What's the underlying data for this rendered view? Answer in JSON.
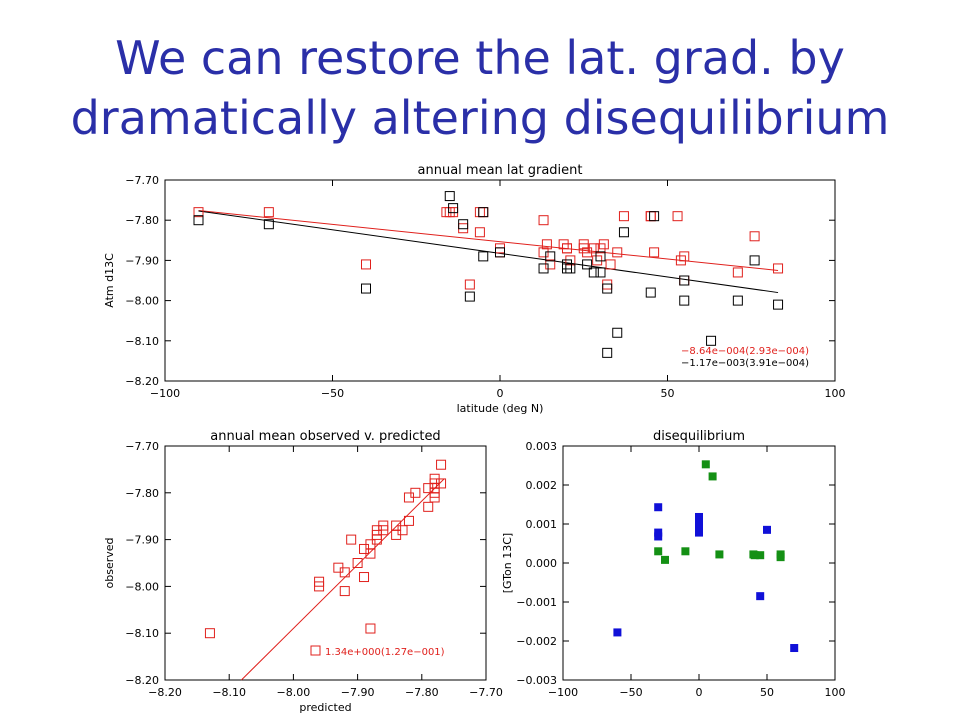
{
  "slide": {
    "title_line1": "We can restore the lat. grad. by",
    "title_line2": "dramatically altering disequilibrium"
  },
  "chart_data": [
    {
      "id": "top",
      "type": "scatter",
      "title": "annual mean lat gradient",
      "xlabel": "latitude (deg N)",
      "ylabel": "Atm d13C",
      "xlim": [
        -100,
        100
      ],
      "ylim": [
        -8.2,
        -7.7
      ],
      "y_inverted": true,
      "xticks": [
        -100,
        -50,
        0,
        50,
        100
      ],
      "yticks": [
        -7.7,
        -7.8,
        -7.9,
        -8.0,
        -8.1,
        -8.2
      ],
      "grid": false,
      "series": [
        {
          "color": "#e0201c",
          "x": [
            -90,
            -69,
            -40,
            -16,
            -15,
            -14,
            -11,
            -9,
            -6,
            -6,
            -5,
            0,
            0,
            13,
            13,
            14,
            15,
            19,
            20,
            20,
            21,
            25,
            25,
            26,
            28,
            29,
            30,
            31,
            32,
            33,
            35,
            37,
            45,
            45,
            46,
            53,
            54,
            55,
            55,
            71,
            76,
            83
          ],
          "y": [
            -7.78,
            -7.78,
            -7.91,
            -7.78,
            -7.78,
            -7.78,
            -7.82,
            -7.96,
            -7.83,
            -7.78,
            -7.78,
            -7.87,
            -7.88,
            -7.8,
            -7.88,
            -7.86,
            -7.91,
            -7.86,
            -7.87,
            -7.87,
            -7.9,
            -7.86,
            -7.87,
            -7.88,
            -7.87,
            -7.9,
            -7.87,
            -7.86,
            -7.96,
            -7.91,
            -7.88,
            -7.79,
            -7.79,
            -7.79,
            -7.88,
            -7.79,
            -7.9,
            -7.95,
            -7.89,
            -7.93,
            -7.84,
            -7.92
          ]
        },
        {
          "color": "#000000",
          "x": [
            -90,
            -69,
            -40,
            -15,
            -14,
            -11,
            -9,
            -5,
            -5,
            0,
            13,
            15,
            20,
            20,
            21,
            26,
            28,
            30,
            30,
            32,
            32,
            35,
            37,
            45,
            46,
            55,
            55,
            63,
            71,
            76,
            83
          ],
          "y": [
            -7.8,
            -7.81,
            -7.97,
            -7.74,
            -7.77,
            -7.81,
            -7.99,
            -7.89,
            -7.78,
            -7.88,
            -7.92,
            -7.89,
            -7.91,
            -7.92,
            -7.92,
            -7.91,
            -7.93,
            -7.93,
            -7.89,
            -8.13,
            -7.97,
            -8.08,
            -7.83,
            -7.98,
            -7.79,
            -7.95,
            -8.0,
            -8.1,
            -8.0,
            -7.9,
            -8.01
          ]
        }
      ],
      "fit_lines": [
        {
          "color": "#e0201c",
          "x": [
            -90,
            83
          ],
          "y": [
            -7.776,
            -7.925
          ]
        },
        {
          "color": "#000000",
          "x": [
            -90,
            83
          ],
          "y": [
            -7.777,
            -7.98
          ]
        }
      ],
      "annotations": [
        {
          "text": "−8.64e−004(2.93e−004)",
          "color": "#e0201c"
        },
        {
          "text": "−1.17e−003(3.91e−004)",
          "color": "#000000"
        }
      ]
    },
    {
      "id": "bottom-left",
      "type": "scatter",
      "title": "annual mean observed v. predicted",
      "xlabel": "predicted",
      "ylabel": "observed",
      "xlim": [
        -8.2,
        -7.7
      ],
      "ylim": [
        -8.2,
        -7.7
      ],
      "y_inverted": true,
      "xticks": [
        -8.2,
        -8.1,
        -8.0,
        -7.9,
        -7.8,
        -7.7
      ],
      "yticks": [
        -7.7,
        -7.8,
        -7.9,
        -8.0,
        -8.1,
        -8.2
      ],
      "grid": false,
      "series": [
        {
          "color": "#e0201c",
          "x": [
            -8.13,
            -7.96,
            -7.96,
            -7.93,
            -7.92,
            -7.92,
            -7.91,
            -7.9,
            -7.89,
            -7.89,
            -7.88,
            -7.88,
            -7.88,
            -7.87,
            -7.87,
            -7.87,
            -7.86,
            -7.86,
            -7.84,
            -7.84,
            -7.83,
            -7.82,
            -7.82,
            -7.81,
            -7.79,
            -7.79,
            -7.78,
            -7.78,
            -7.78,
            -7.78,
            -7.78,
            -7.77,
            -7.77
          ],
          "y": [
            -8.1,
            -7.99,
            -8.0,
            -7.96,
            -8.01,
            -7.97,
            -7.9,
            -7.95,
            -7.92,
            -7.98,
            -8.09,
            -7.91,
            -7.93,
            -7.88,
            -7.9,
            -7.89,
            -7.88,
            -7.87,
            -7.87,
            -7.89,
            -7.88,
            -7.81,
            -7.86,
            -7.8,
            -7.79,
            -7.83,
            -7.8,
            -7.79,
            -7.78,
            -7.77,
            -7.81,
            -7.74,
            -7.78
          ]
        }
      ],
      "fit_lines": [
        {
          "color": "#e0201c",
          "x": [
            -8.081,
            -7.765
          ],
          "y": [
            -8.2,
            -7.77
          ]
        }
      ],
      "legend": {
        "text": "1.34e+000(1.27e−001)",
        "color": "#e0201c",
        "position": "bottom-right"
      }
    },
    {
      "id": "bottom-right",
      "type": "scatter",
      "title": "disequilibrium",
      "xlabel": "",
      "ylabel": "[GTon 13C]",
      "xlim": [
        -100,
        100
      ],
      "ylim": [
        -0.003,
        0.003
      ],
      "xticks": [
        -100,
        -50,
        0,
        50,
        100
      ],
      "yticks": [
        0.003,
        0.002,
        0.001,
        0.0,
        -0.001,
        -0.002,
        -0.003
      ],
      "ytick_labels": [
        "0.003",
        "0.002",
        "0.001",
        "0.000",
        "−0.001",
        "−0.002",
        "−0.003"
      ],
      "grid": false,
      "series": [
        {
          "color": "#1010d8",
          "x": [
            -60,
            -30,
            -30,
            -30,
            0,
            0,
            0,
            0,
            45,
            50,
            70
          ],
          "y": [
            -0.00178,
            0.00143,
            0.00078,
            0.00068,
            0.00118,
            0.00103,
            0.00088,
            0.00078,
            -0.00085,
            0.00085,
            -0.00218
          ]
        },
        {
          "color": "#149014",
          "x": [
            -30,
            -25,
            -10,
            5,
            10,
            15,
            40,
            41,
            45,
            60,
            60
          ],
          "y": [
            0.0003,
            8e-05,
            0.0003,
            0.00253,
            0.00222,
            0.00022,
            0.00022,
            0.0002,
            0.0002,
            0.00022,
            0.00015
          ]
        }
      ]
    }
  ]
}
